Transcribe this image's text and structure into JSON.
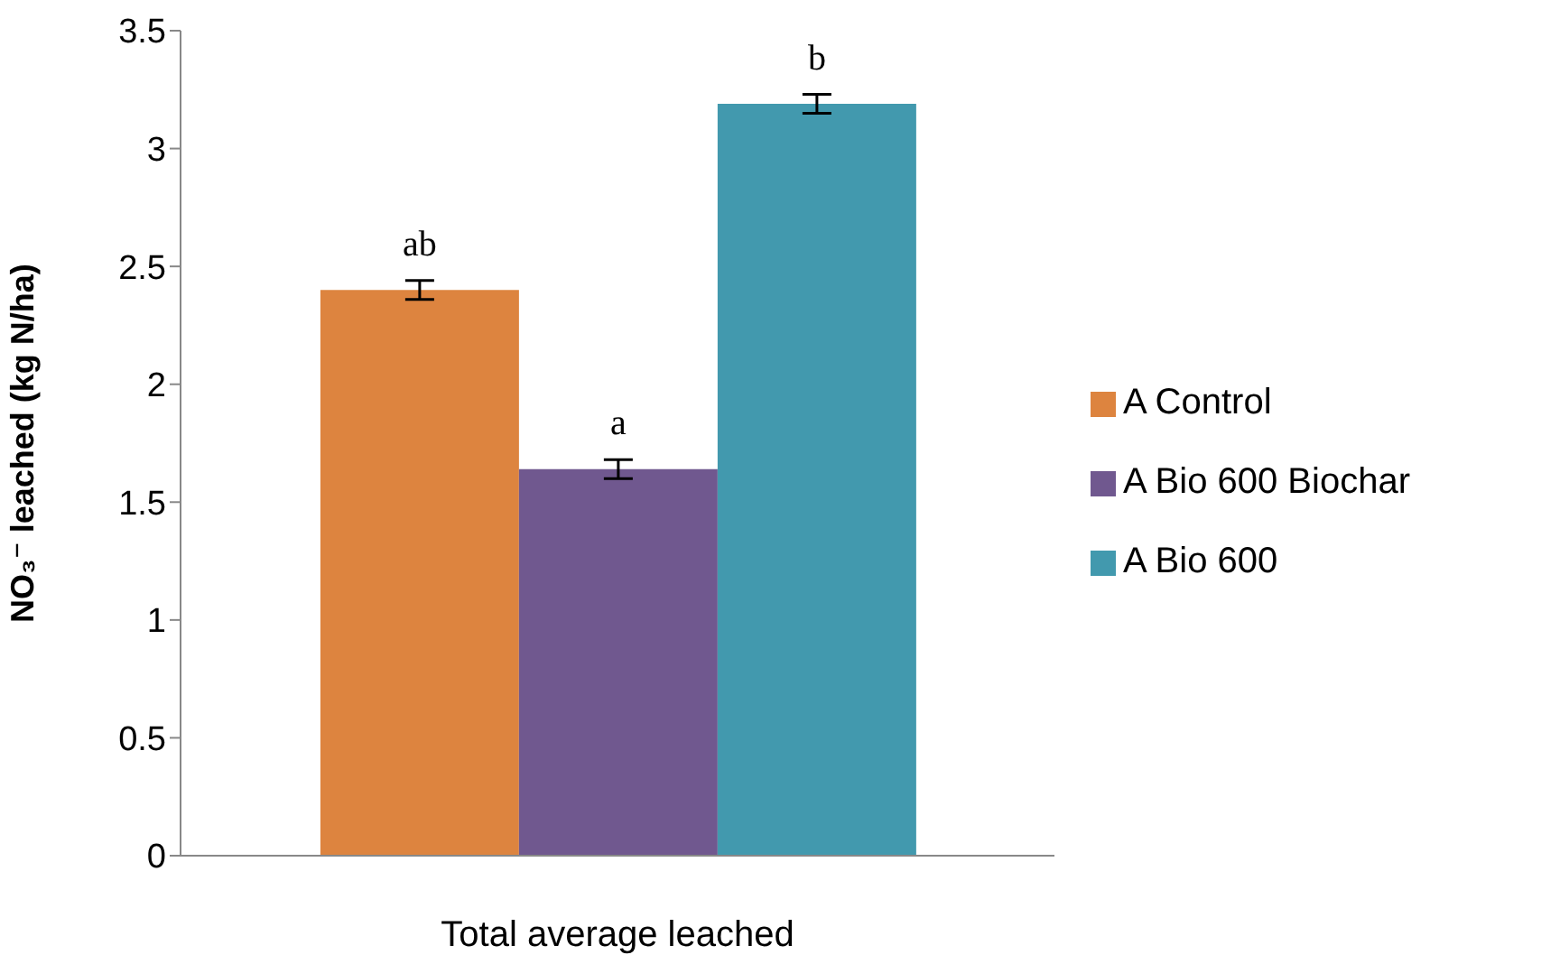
{
  "chart_data": {
    "type": "bar",
    "xlabel": "Total average leached",
    "ylabel": "NO₃⁻ leached (kg N/ha)",
    "categories": [
      null
    ],
    "series": [
      {
        "name": "A Control",
        "color": "#dd843f",
        "values": [
          2.4
        ],
        "errors": [
          0.04
        ]
      },
      {
        "name": "A Bio 600 Biochar",
        "color": "#70588f",
        "values": [
          1.64
        ],
        "errors": [
          0.04
        ]
      },
      {
        "name": "A Bio 600",
        "color": "#4299ae",
        "values": [
          3.19
        ],
        "errors": [
          0.04
        ]
      }
    ],
    "annotations": [
      "ab",
      "a",
      "b"
    ],
    "ylim": [
      0,
      3.5
    ],
    "yticks": [
      0,
      0.5,
      1,
      1.5,
      2,
      2.5,
      3,
      3.5
    ],
    "grid": false,
    "legend": "right"
  }
}
